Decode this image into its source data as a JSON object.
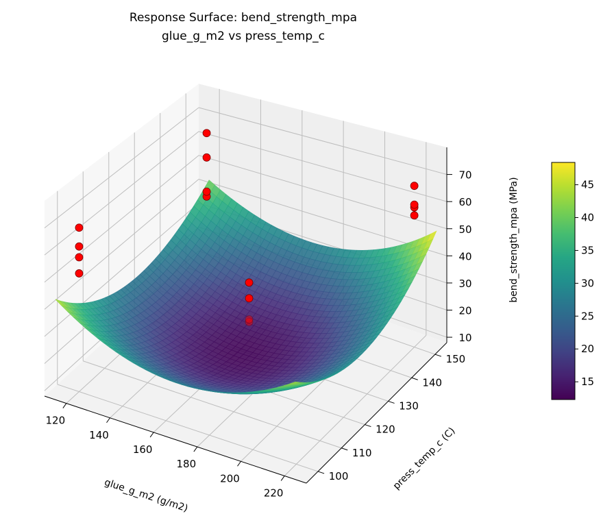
{
  "chart_data": {
    "type": "surface3d",
    "title": "Response Surface: bend_strength_mpa",
    "subtitle": "glue_g_m2 vs press_temp_c",
    "xlabel": "glue_g_m2 (g/m2)",
    "ylabel": "press_temp_c (C)",
    "zlabel": "bend_strength_mpa (MPa)",
    "colorbar_label": "bend_strength_mpa (MPa)",
    "colormap": "viridis",
    "xlim": [
      110,
      230
    ],
    "ylim": [
      95,
      155
    ],
    "zlim": [
      8,
      80
    ],
    "xticks": [
      120,
      140,
      160,
      180,
      200,
      220
    ],
    "yticks": [
      100,
      110,
      120,
      130,
      140,
      150
    ],
    "zticks": [
      10,
      20,
      30,
      40,
      50,
      60,
      70
    ],
    "colorbar_range": [
      12.3,
      48.4
    ],
    "colorbar_ticks": [
      15,
      20,
      25,
      30,
      35,
      40,
      45
    ],
    "grid": true,
    "surface": {
      "x_range": [
        115,
        225
      ],
      "y_range": [
        95,
        155
      ],
      "min_value": 13,
      "max_value": 48
    },
    "points_color": "#ff0000",
    "points": [
      {
        "x": 120,
        "y": 100,
        "z": 52
      },
      {
        "x": 120,
        "y": 100,
        "z": 58
      },
      {
        "x": 120,
        "y": 100,
        "z": 62
      },
      {
        "x": 120,
        "y": 100,
        "z": 69
      },
      {
        "x": 120,
        "y": 150,
        "z": 40
      },
      {
        "x": 120,
        "y": 150,
        "z": 42
      },
      {
        "x": 120,
        "y": 150,
        "z": 56
      },
      {
        "x": 120,
        "y": 150,
        "z": 66
      },
      {
        "x": 220,
        "y": 150,
        "z": 57
      },
      {
        "x": 220,
        "y": 150,
        "z": 60
      },
      {
        "x": 220,
        "y": 150,
        "z": 61
      },
      {
        "x": 220,
        "y": 150,
        "z": 68
      },
      {
        "x": 170,
        "y": 125,
        "z": 26
      },
      {
        "x": 170,
        "y": 125,
        "z": 27
      },
      {
        "x": 170,
        "y": 125,
        "z": 35
      },
      {
        "x": 170,
        "y": 125,
        "z": 41
      }
    ]
  }
}
